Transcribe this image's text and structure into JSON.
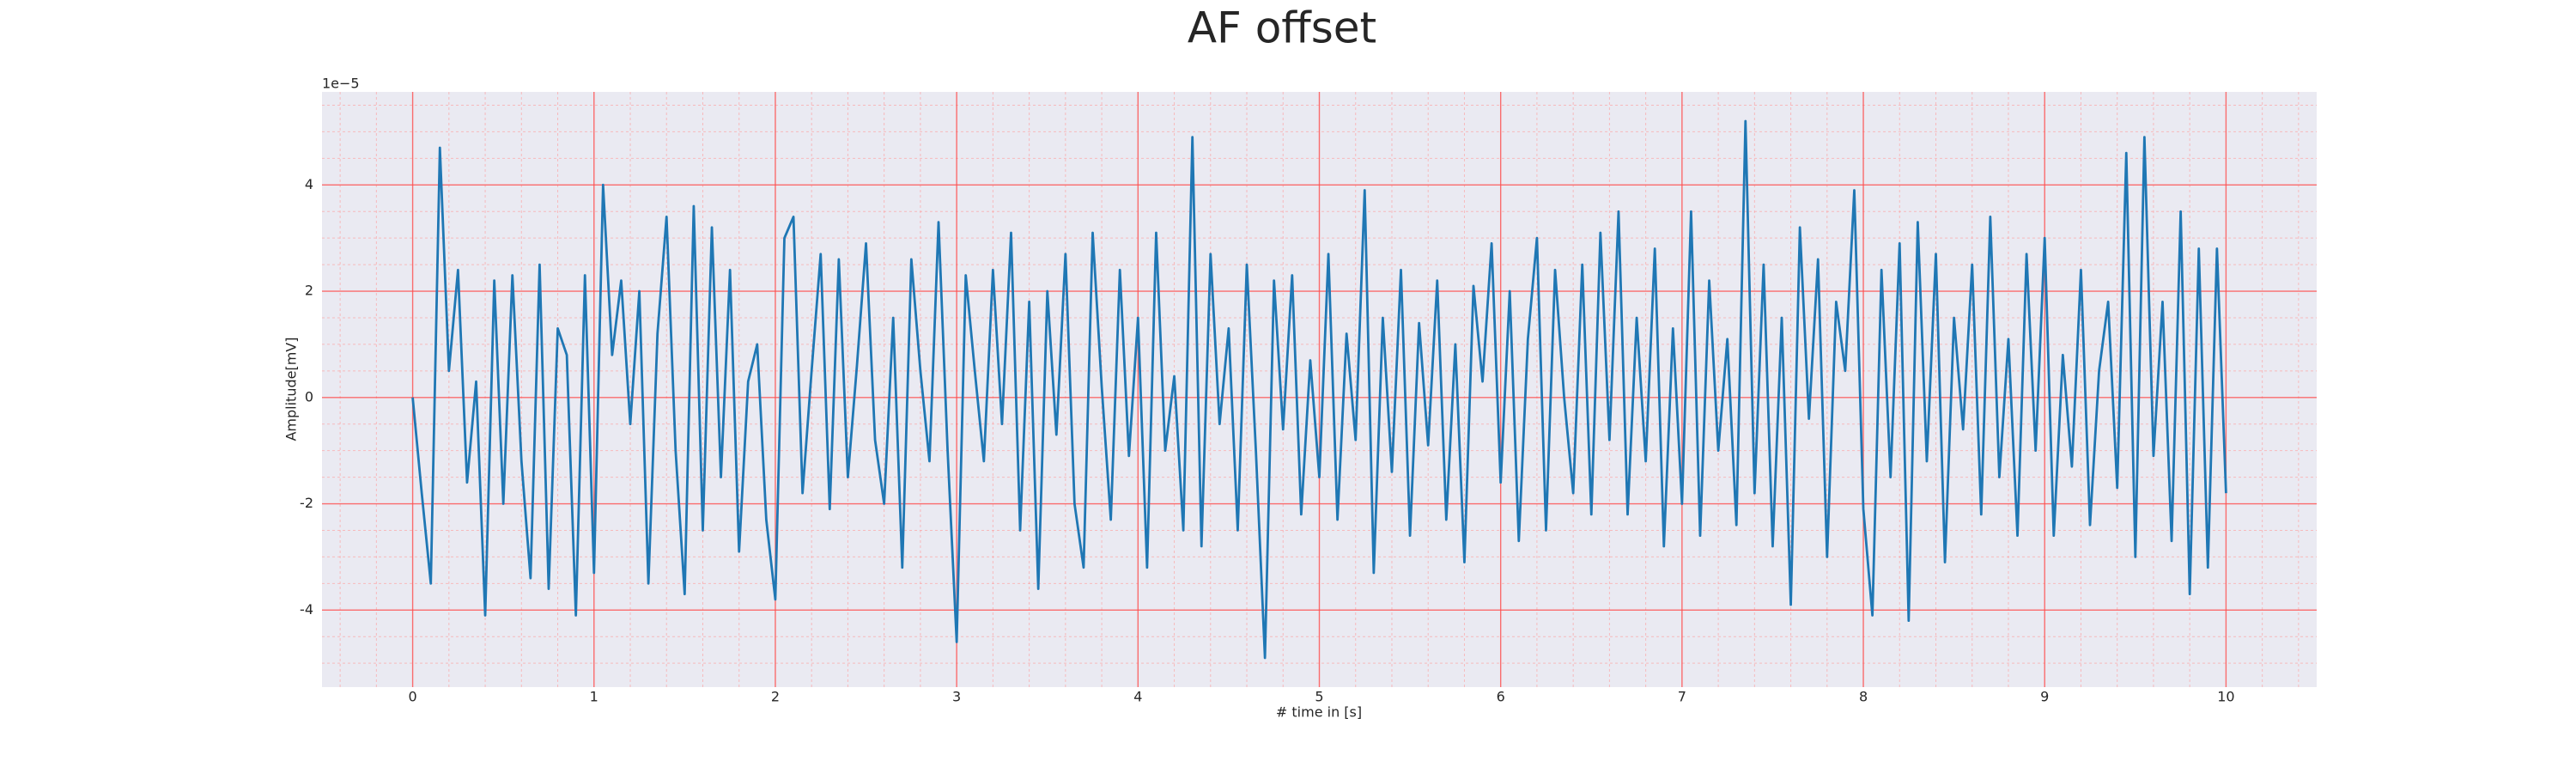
{
  "chart_data": {
    "type": "line",
    "title": "AF offset",
    "x_label": "# time in [s]",
    "y_label": "Amplitude[mV]",
    "y_offset_label": "1e−5",
    "color": "#1f77b4",
    "grid": true,
    "minor_grid": true,
    "xlim": [
      -0.5,
      10.5
    ],
    "ylim": [
      -5.45,
      5.75
    ],
    "xticks": [
      0,
      1,
      2,
      3,
      4,
      5,
      6,
      7,
      8,
      9,
      10
    ],
    "yticks": [
      -4,
      -2,
      0,
      2,
      4
    ],
    "xminorticks": [
      -0.4,
      -0.2,
      0.2,
      0.4,
      0.6,
      0.8,
      1.2,
      1.4,
      1.6,
      1.8,
      2.2,
      2.4,
      2.6,
      2.8,
      3.2,
      3.4,
      3.6,
      3.8,
      4.2,
      4.4,
      4.6,
      4.8,
      5.2,
      5.4,
      5.6,
      5.8,
      6.2,
      6.4,
      6.6,
      6.8,
      7.2,
      7.4,
      7.6,
      7.8,
      8.2,
      8.4,
      8.6,
      8.8,
      9.2,
      9.4,
      9.6,
      9.8,
      10.2,
      10.4
    ],
    "yminorticks": [
      -5,
      -4.5,
      -3.5,
      -3,
      -2.5,
      -1.5,
      -1,
      -0.5,
      0.5,
      1,
      1.5,
      2.5,
      3,
      3.5,
      4.5,
      5,
      5.5
    ],
    "x": [
      0,
      0.05,
      0.1,
      0.15,
      0.2,
      0.25,
      0.3,
      0.35,
      0.4,
      0.45,
      0.5,
      0.55,
      0.6,
      0.65,
      0.7,
      0.75,
      0.8,
      0.85,
      0.9,
      0.95,
      1,
      1.05,
      1.1,
      1.15,
      1.2,
      1.25,
      1.3,
      1.35,
      1.4,
      1.45,
      1.5,
      1.55,
      1.6,
      1.65,
      1.7,
      1.75,
      1.8,
      1.85,
      1.9,
      1.95,
      2,
      2.05,
      2.1,
      2.15,
      2.2,
      2.25,
      2.3,
      2.35,
      2.4,
      2.45,
      2.5,
      2.55,
      2.6,
      2.65,
      2.7,
      2.75,
      2.8,
      2.85,
      2.9,
      2.95,
      3,
      3.05,
      3.1,
      3.15,
      3.2,
      3.25,
      3.3,
      3.35,
      3.4,
      3.45,
      3.5,
      3.55,
      3.6,
      3.65,
      3.7,
      3.75,
      3.8,
      3.85,
      3.9,
      3.95,
      4,
      4.05,
      4.1,
      4.15,
      4.2,
      4.25,
      4.3,
      4.35,
      4.4,
      4.45,
      4.5,
      4.55,
      4.6,
      4.65,
      4.7,
      4.75,
      4.8,
      4.85,
      4.9,
      4.95,
      5,
      5.05,
      5.1,
      5.15,
      5.2,
      5.25,
      5.3,
      5.35,
      5.4,
      5.45,
      5.5,
      5.55,
      5.6,
      5.65,
      5.7,
      5.75,
      5.8,
      5.85,
      5.9,
      5.95,
      6,
      6.05,
      6.1,
      6.15,
      6.2,
      6.25,
      6.3,
      6.35,
      6.4,
      6.45,
      6.5,
      6.55,
      6.6,
      6.65,
      6.7,
      6.75,
      6.8,
      6.85,
      6.9,
      6.95,
      7,
      7.05,
      7.1,
      7.15,
      7.2,
      7.25,
      7.3,
      7.35,
      7.4,
      7.45,
      7.5,
      7.55,
      7.6,
      7.65,
      7.7,
      7.75,
      7.8,
      7.85,
      7.9,
      7.95,
      8,
      8.05,
      8.1,
      8.15,
      8.2,
      8.25,
      8.3,
      8.35,
      8.4,
      8.45,
      8.5,
      8.55,
      8.6,
      8.65,
      8.7,
      8.75,
      8.8,
      8.85,
      8.9,
      8.95,
      9,
      9.05,
      9.1,
      9.15,
      9.2,
      9.25,
      9.3,
      9.35,
      9.4,
      9.45,
      9.5,
      9.55,
      9.6,
      9.65,
      9.7,
      9.75,
      9.8,
      9.85,
      9.9,
      9.95,
      10
    ],
    "values": [
      0,
      -1.8,
      -3.5,
      4.7,
      0.5,
      2.4,
      -1.6,
      0.3,
      -4.1,
      2.2,
      -2.0,
      2.3,
      -1.2,
      -3.4,
      2.5,
      -3.6,
      1.3,
      0.8,
      -4.1,
      2.3,
      -3.3,
      4.0,
      0.8,
      2.2,
      -0.5,
      2.0,
      -3.5,
      1.2,
      3.4,
      -1.0,
      -3.7,
      3.6,
      -2.5,
      3.2,
      -1.5,
      2.4,
      -2.9,
      0.3,
      1.0,
      -2.3,
      -3.8,
      3.0,
      3.4,
      -1.8,
      0.5,
      2.7,
      -2.1,
      2.6,
      -1.5,
      0.6,
      2.9,
      -0.8,
      -2.0,
      1.5,
      -3.2,
      2.6,
      0.5,
      -1.2,
      3.3,
      -1.0,
      -4.6,
      2.3,
      0.5,
      -1.2,
      2.4,
      -0.5,
      3.1,
      -2.5,
      1.8,
      -3.6,
      2.0,
      -0.7,
      2.7,
      -2.0,
      -3.2,
      3.1,
      0.2,
      -2.3,
      2.4,
      -1.1,
      1.5,
      -3.2,
      3.1,
      -1.0,
      0.4,
      -2.5,
      4.9,
      -2.8,
      2.7,
      -0.5,
      1.3,
      -2.5,
      2.5,
      -1.0,
      -4.9,
      2.2,
      -0.6,
      2.3,
      -2.2,
      0.7,
      -1.5,
      2.7,
      -2.3,
      1.2,
      -0.8,
      3.9,
      -3.3,
      1.5,
      -1.4,
      2.4,
      -2.6,
      1.4,
      -0.9,
      2.2,
      -2.3,
      1.0,
      -3.1,
      2.1,
      0.3,
      2.9,
      -1.6,
      2.0,
      -2.7,
      1.1,
      3.0,
      -2.5,
      2.4,
      0.0,
      -1.8,
      2.5,
      -2.2,
      3.1,
      -0.8,
      3.5,
      -2.2,
      1.5,
      -1.2,
      2.8,
      -2.8,
      1.3,
      -2.0,
      3.5,
      -2.6,
      2.2,
      -1.0,
      1.1,
      -2.4,
      5.2,
      -1.8,
      2.5,
      -2.8,
      1.5,
      -3.9,
      3.2,
      -0.4,
      2.6,
      -3.0,
      1.8,
      0.5,
      3.9,
      -2.1,
      -4.1,
      2.4,
      -1.5,
      2.9,
      -4.2,
      3.3,
      -1.2,
      2.7,
      -3.1,
      1.5,
      -0.6,
      2.5,
      -2.2,
      3.4,
      -1.5,
      1.1,
      -2.6,
      2.7,
      -1.0,
      3.0,
      -2.6,
      0.8,
      -1.3,
      2.4,
      -2.4,
      0.5,
      1.8,
      -1.7,
      4.6,
      -3.0,
      4.9,
      -1.1,
      1.8,
      -2.7,
      3.5,
      -3.7,
      2.8,
      -3.2,
      2.8,
      -1.8
    ]
  }
}
